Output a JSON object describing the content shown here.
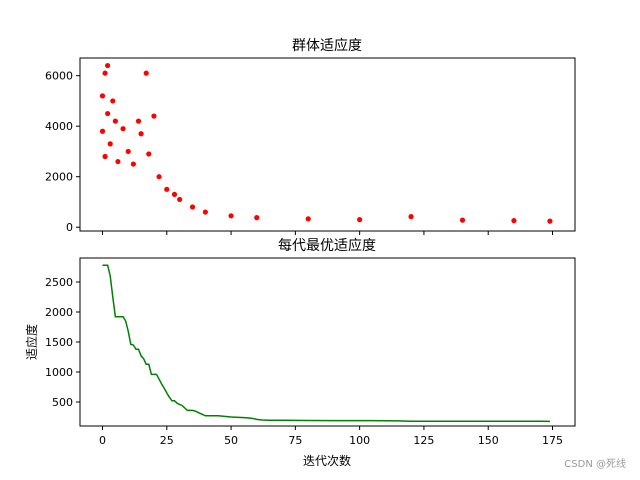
{
  "chart_data": [
    {
      "type": "scatter",
      "title": "群体适应度",
      "xlabel": "",
      "ylabel": "",
      "xlim": [
        -8.75,
        183.75
      ],
      "ylim": [
        -150,
        6700
      ],
      "yticks": [
        0,
        2000,
        4000,
        6000
      ],
      "x_tick_labels_visible": false,
      "marker_color": "#ff0000",
      "grid": false,
      "series": [
        {
          "description_points": [
            {
              "x": 0,
              "y": 3800
            },
            {
              "x": 0,
              "y": 5200
            },
            {
              "x": 1,
              "y": 6100
            },
            {
              "x": 1,
              "y": 2800
            },
            {
              "x": 2,
              "y": 6400
            },
            {
              "x": 2,
              "y": 4500
            },
            {
              "x": 3,
              "y": 3300
            },
            {
              "x": 4,
              "y": 5000
            },
            {
              "x": 5,
              "y": 4200
            },
            {
              "x": 6,
              "y": 2600
            },
            {
              "x": 8,
              "y": 3900
            },
            {
              "x": 10,
              "y": 3000
            },
            {
              "x": 12,
              "y": 2500
            },
            {
              "x": 14,
              "y": 4200
            },
            {
              "x": 15,
              "y": 3700
            },
            {
              "x": 17,
              "y": 6100
            },
            {
              "x": 18,
              "y": 2900
            },
            {
              "x": 20,
              "y": 4400
            },
            {
              "x": 22,
              "y": 2000
            },
            {
              "x": 25,
              "y": 1500
            },
            {
              "x": 28,
              "y": 1300
            },
            {
              "x": 30,
              "y": 1100
            },
            {
              "x": 35,
              "y": 800
            },
            {
              "x": 40,
              "y": 600
            },
            {
              "x": 50,
              "y": 450
            },
            {
              "x": 60,
              "y": 380
            },
            {
              "x": 80,
              "y": 330
            },
            {
              "x": 100,
              "y": 300
            },
            {
              "x": 120,
              "y": 420
            },
            {
              "x": 140,
              "y": 280
            },
            {
              "x": 160,
              "y": 260
            },
            {
              "x": 174,
              "y": 240
            }
          ]
        }
      ]
    },
    {
      "type": "line",
      "title": "每代最优适应度",
      "xlabel": "迭代次数",
      "ylabel": "适应度",
      "xlim": [
        -8.75,
        183.75
      ],
      "ylim": [
        100,
        2900
      ],
      "xticks": [
        0,
        25,
        50,
        75,
        100,
        125,
        150,
        175
      ],
      "yticks": [
        500,
        1000,
        1500,
        2000,
        2500
      ],
      "grid": false,
      "series": [
        {
          "color": "#008000",
          "x": [
            0,
            1,
            2,
            3,
            4,
            5,
            6,
            7,
            8,
            9,
            10,
            11,
            12,
            13,
            14,
            15,
            16,
            17,
            18,
            19,
            20,
            21,
            22,
            23,
            24,
            25,
            26,
            27,
            28,
            29,
            30,
            31,
            32,
            33,
            34,
            35,
            36,
            37,
            38,
            39,
            40,
            45,
            50,
            55,
            58,
            60,
            62,
            65,
            70,
            80,
            90,
            100,
            105,
            110,
            115,
            120,
            130,
            140,
            150,
            160,
            170,
            174
          ],
          "y": [
            2780,
            2780,
            2780,
            2600,
            2250,
            1920,
            1920,
            1920,
            1920,
            1850,
            1680,
            1460,
            1450,
            1380,
            1380,
            1270,
            1220,
            1130,
            1130,
            960,
            960,
            960,
            880,
            800,
            730,
            650,
            580,
            520,
            520,
            480,
            460,
            440,
            400,
            360,
            360,
            360,
            350,
            330,
            310,
            290,
            270,
            270,
            250,
            240,
            230,
            210,
            200,
            195,
            195,
            192,
            190,
            190,
            190,
            188,
            185,
            180,
            180,
            180,
            180,
            180,
            180,
            178
          ]
        }
      ]
    }
  ],
  "watermark": "CSDN @死线"
}
